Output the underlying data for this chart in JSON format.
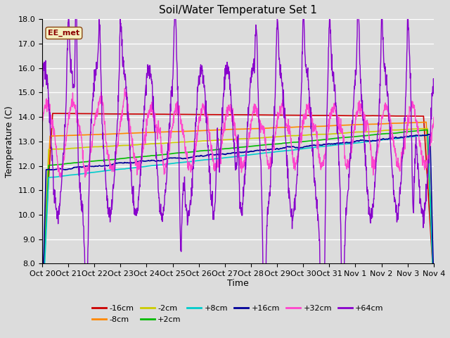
{
  "title": "Soil/Water Temperature Set 1",
  "xlabel": "Time",
  "ylabel": "Temperature (C)",
  "ylim": [
    8.0,
    18.0
  ],
  "yticks": [
    8.0,
    9.0,
    10.0,
    11.0,
    12.0,
    13.0,
    14.0,
    15.0,
    16.0,
    17.0,
    18.0
  ],
  "bg_color": "#dcdcdc",
  "annotation_text": "EE_met",
  "xtick_labels": [
    "Oct 20",
    "Oct 21",
    "Oct 22",
    "Oct 23",
    "Oct 24",
    "Oct 25",
    "Oct 26",
    "Oct 27",
    "Oct 28",
    "Oct 29",
    "Oct 30",
    "Oct 31",
    "Nov 1",
    "Nov 2",
    "Nov 3",
    "Nov 4"
  ],
  "series_colors": {
    "-16cm": "#cc0000",
    "-8cm": "#ff8800",
    "-2cm": "#cccc00",
    "+2cm": "#00bb00",
    "+8cm": "#00cccc",
    "+16cm": "#000099",
    "+32cm": "#ff44cc",
    "+64cm": "#8800cc"
  }
}
